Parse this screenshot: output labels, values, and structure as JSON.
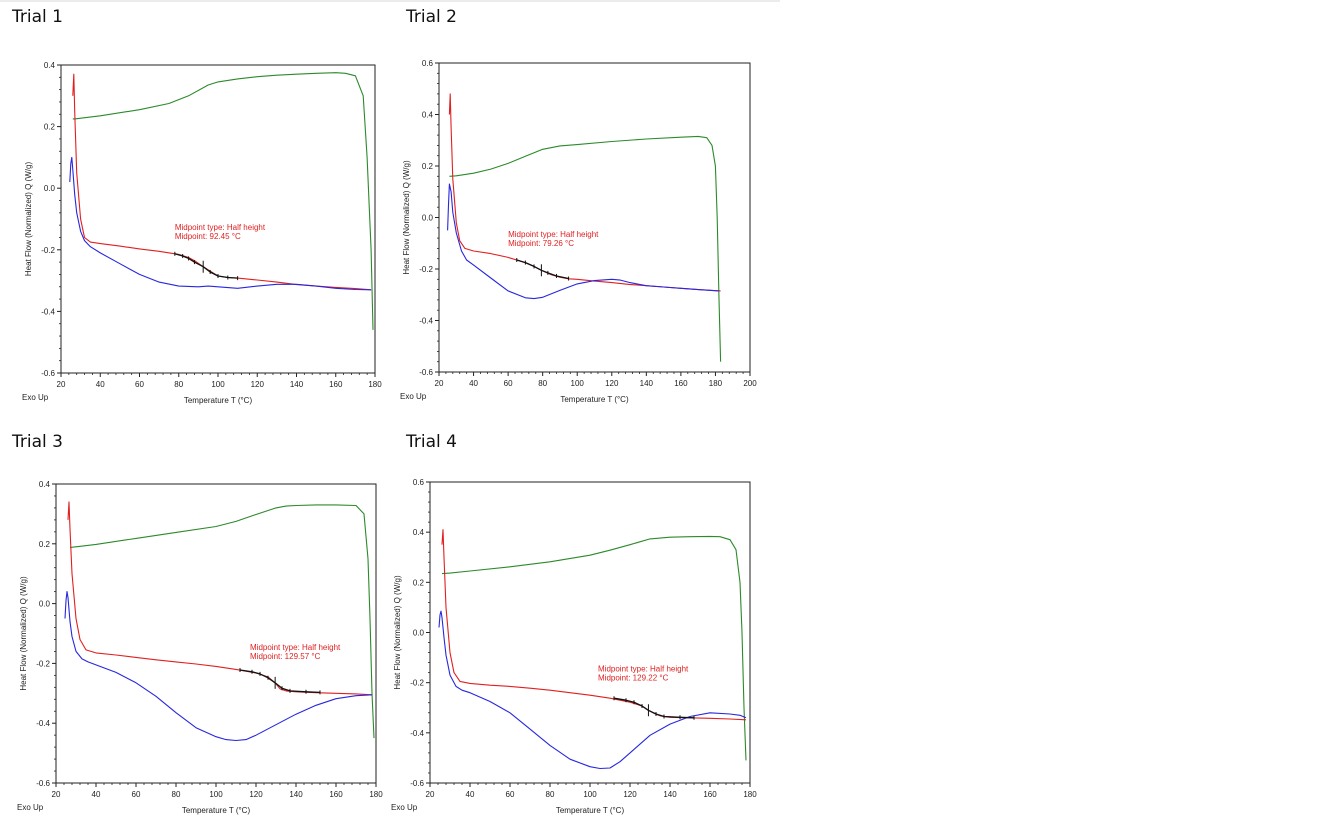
{
  "titles": [
    "Trial 1",
    "Trial 2",
    "Trial 3",
    "Trial 4"
  ],
  "colors": {
    "heat": "#2b8a2b",
    "cool": "#e02020",
    "reheat": "#2727e0",
    "marker": "#111111",
    "annotation": "#e02020"
  },
  "chart_data": [
    {
      "type": "line",
      "title": "Trial 1",
      "xlabel": "Temperature T (°C)",
      "ylabel": "Heat Flow (Normalized) Q (W/g)",
      "corner_label": "Exo Up",
      "xlim": [
        20,
        180
      ],
      "ylim": [
        -0.6,
        0.4
      ],
      "xticks": [
        20,
        40,
        60,
        80,
        100,
        120,
        140,
        160,
        180
      ],
      "yticks": [
        -0.6,
        -0.4,
        -0.2,
        0.0,
        0.2,
        0.4
      ],
      "ytick_labels": [
        "-0.6",
        "-0.4",
        "-0.2",
        "0.0",
        "0.2",
        "0.4"
      ],
      "annotation": [
        "Midpoint type: Half height",
        "Midpoint: 92.45 °C"
      ],
      "annotation_at": [
        78,
        -0.135
      ],
      "series": [
        {
          "role": "heat",
          "x": [
            26,
            27,
            40,
            60,
            75,
            85,
            95,
            100,
            110,
            120,
            130,
            140,
            150,
            160,
            165,
            170,
            174,
            176,
            178,
            179
          ],
          "y": [
            0.225,
            0.225,
            0.235,
            0.255,
            0.275,
            0.3,
            0.335,
            0.345,
            0.355,
            0.362,
            0.367,
            0.37,
            0.373,
            0.375,
            0.373,
            0.365,
            0.3,
            0.1,
            -0.2,
            -0.46
          ]
        },
        {
          "role": "cool",
          "x": [
            178,
            170,
            160,
            150,
            140,
            130,
            120,
            110,
            105,
            100,
            95,
            92.45,
            88,
            85,
            80,
            70,
            60,
            50,
            40,
            35,
            32,
            30,
            28,
            27,
            26.5,
            26
          ],
          "y": [
            -0.33,
            -0.326,
            -0.322,
            -0.318,
            -0.313,
            -0.305,
            -0.298,
            -0.292,
            -0.29,
            -0.285,
            -0.265,
            -0.255,
            -0.235,
            -0.225,
            -0.215,
            -0.205,
            -0.197,
            -0.188,
            -0.18,
            -0.175,
            -0.16,
            -0.1,
            0.05,
            0.25,
            0.37,
            0.3
          ]
        },
        {
          "role": "reheat",
          "x": [
            24.5,
            25,
            25.5,
            26,
            27,
            28,
            30,
            32,
            35,
            40,
            50,
            60,
            70,
            80,
            90,
            95,
            100,
            110,
            120,
            130,
            140,
            150,
            160,
            170,
            178
          ],
          "y": [
            0.02,
            0.08,
            0.1,
            0.06,
            -0.02,
            -0.08,
            -0.14,
            -0.17,
            -0.19,
            -0.21,
            -0.245,
            -0.28,
            -0.305,
            -0.318,
            -0.32,
            -0.318,
            -0.32,
            -0.325,
            -0.318,
            -0.312,
            -0.312,
            -0.318,
            -0.325,
            -0.329,
            -0.33
          ]
        },
        {
          "role": "marker",
          "x": [
            78,
            82,
            85,
            88,
            92.45,
            96,
            100,
            105,
            110
          ],
          "y": [
            -0.213,
            -0.22,
            -0.228,
            -0.24,
            -0.255,
            -0.272,
            -0.285,
            -0.29,
            -0.292
          ]
        }
      ]
    },
    {
      "type": "line",
      "title": "Trial 2",
      "xlabel": "Temperature T (°C)",
      "ylabel": "Heat Flow (Normalized) Q (W/g)",
      "corner_label": "Exo Up",
      "xlim": [
        20,
        200
      ],
      "ylim": [
        -0.6,
        0.6
      ],
      "xticks": [
        20,
        40,
        60,
        80,
        100,
        120,
        140,
        160,
        180,
        200
      ],
      "yticks": [
        -0.6,
        -0.4,
        -0.2,
        0.0,
        0.2,
        0.4,
        0.6
      ],
      "ytick_labels": [
        "-0.6",
        "-0.4",
        "-0.2",
        "0.0",
        "0.2",
        "0.4",
        "0.6"
      ],
      "annotation": [
        "Midpoint type: Half height",
        "Midpoint: 79.26 °C"
      ],
      "annotation_at": [
        60,
        -0.075
      ],
      "series": [
        {
          "role": "heat",
          "x": [
            26,
            30,
            40,
            50,
            60,
            70,
            80,
            90,
            100,
            120,
            140,
            160,
            170,
            175,
            178,
            180,
            181,
            182,
            183
          ],
          "y": [
            0.16,
            0.162,
            0.172,
            0.188,
            0.21,
            0.238,
            0.265,
            0.278,
            0.283,
            0.295,
            0.305,
            0.312,
            0.315,
            0.31,
            0.28,
            0.2,
            0.0,
            -0.3,
            -0.56
          ]
        },
        {
          "role": "cool",
          "x": [
            183,
            170,
            160,
            150,
            140,
            130,
            120,
            110,
            100,
            95,
            90,
            85,
            79.26,
            75,
            70,
            60,
            50,
            40,
            35,
            32,
            30,
            28,
            27,
            26.5,
            26
          ],
          "y": [
            -0.285,
            -0.28,
            -0.275,
            -0.27,
            -0.265,
            -0.26,
            -0.253,
            -0.247,
            -0.24,
            -0.238,
            -0.232,
            -0.222,
            -0.205,
            -0.19,
            -0.175,
            -0.155,
            -0.14,
            -0.13,
            -0.12,
            -0.09,
            -0.02,
            0.15,
            0.35,
            0.48,
            0.4
          ]
        },
        {
          "role": "reheat",
          "x": [
            25,
            25.5,
            26,
            27,
            28,
            30,
            33,
            36,
            40,
            50,
            60,
            70,
            75,
            80,
            90,
            100,
            110,
            120,
            125,
            130,
            140,
            150,
            160,
            170,
            182
          ],
          "y": [
            -0.05,
            0.05,
            0.13,
            0.1,
            0.02,
            -0.06,
            -0.13,
            -0.165,
            -0.185,
            -0.235,
            -0.285,
            -0.312,
            -0.315,
            -0.31,
            -0.283,
            -0.258,
            -0.245,
            -0.24,
            -0.243,
            -0.252,
            -0.265,
            -0.27,
            -0.275,
            -0.28,
            -0.285
          ]
        },
        {
          "role": "marker",
          "x": [
            65,
            70,
            75,
            79.26,
            83,
            88,
            95
          ],
          "y": [
            -0.165,
            -0.175,
            -0.19,
            -0.205,
            -0.215,
            -0.227,
            -0.237
          ]
        }
      ]
    },
    {
      "type": "line",
      "title": "Trial 3",
      "xlabel": "Temperature T (°C)",
      "ylabel": "Heat Flow (Normalized) Q (W/g)",
      "corner_label": "Exo Up",
      "xlim": [
        20,
        180
      ],
      "ylim": [
        -0.6,
        0.4
      ],
      "xticks": [
        20,
        40,
        60,
        80,
        100,
        120,
        140,
        160,
        180
      ],
      "yticks": [
        -0.6,
        -0.4,
        -0.2,
        0.0,
        0.2,
        0.4
      ],
      "ytick_labels": [
        "-0.6",
        "-0.4",
        "-0.2",
        "0.0",
        "0.2",
        "0.4"
      ],
      "annotation": [
        "Midpoint type: Half height",
        "Midpoint: 129.57 °C"
      ],
      "annotation_at": [
        117,
        -0.155
      ],
      "series": [
        {
          "role": "heat",
          "x": [
            27,
            30,
            40,
            60,
            80,
            100,
            110,
            120,
            130,
            135,
            140,
            150,
            160,
            170,
            174,
            176,
            177,
            178,
            179
          ],
          "y": [
            0.188,
            0.19,
            0.198,
            0.218,
            0.238,
            0.258,
            0.275,
            0.298,
            0.32,
            0.326,
            0.328,
            0.33,
            0.33,
            0.328,
            0.3,
            0.15,
            -0.05,
            -0.3,
            -0.45
          ]
        },
        {
          "role": "cool",
          "x": [
            178,
            170,
            160,
            150,
            140,
            135,
            132,
            129.57,
            126,
            120,
            110,
            100,
            90,
            80,
            70,
            60,
            50,
            40,
            35,
            32,
            30,
            28,
            27,
            26.5,
            26
          ],
          "y": [
            -0.305,
            -0.302,
            -0.3,
            -0.298,
            -0.295,
            -0.292,
            -0.285,
            -0.265,
            -0.245,
            -0.232,
            -0.22,
            -0.21,
            -0.202,
            -0.195,
            -0.188,
            -0.18,
            -0.172,
            -0.165,
            -0.155,
            -0.12,
            -0.05,
            0.1,
            0.25,
            0.34,
            0.28
          ]
        },
        {
          "role": "reheat",
          "x": [
            24.5,
            25,
            25.5,
            26,
            27,
            28,
            30,
            33,
            36,
            40,
            50,
            60,
            70,
            80,
            90,
            100,
            105,
            110,
            115,
            120,
            130,
            140,
            150,
            160,
            170,
            178
          ],
          "y": [
            -0.05,
            0.01,
            0.04,
            0.02,
            -0.06,
            -0.11,
            -0.16,
            -0.185,
            -0.195,
            -0.205,
            -0.23,
            -0.265,
            -0.31,
            -0.365,
            -0.415,
            -0.445,
            -0.455,
            -0.458,
            -0.455,
            -0.44,
            -0.405,
            -0.37,
            -0.34,
            -0.318,
            -0.308,
            -0.305
          ]
        },
        {
          "role": "marker",
          "x": [
            112,
            118,
            122,
            126,
            129.57,
            133,
            137,
            145,
            152
          ],
          "y": [
            -0.222,
            -0.228,
            -0.235,
            -0.248,
            -0.265,
            -0.283,
            -0.292,
            -0.295,
            -0.297
          ]
        }
      ]
    },
    {
      "type": "line",
      "title": "Trial 4",
      "xlabel": "Temperature T (°C)",
      "ylabel": "Heat Flow (Normalized) Q (W/g)",
      "corner_label": "Exo Up",
      "xlim": [
        20,
        180
      ],
      "ylim": [
        -0.6,
        0.6
      ],
      "xticks": [
        20,
        40,
        60,
        80,
        100,
        120,
        140,
        160,
        180
      ],
      "yticks": [
        -0.6,
        -0.4,
        -0.2,
        0.0,
        0.2,
        0.4,
        0.6
      ],
      "ytick_labels": [
        "-0.6",
        "-0.4",
        "-0.2",
        "0.0",
        "0.2",
        "0.4",
        "0.6"
      ],
      "annotation": [
        "Midpoint type: Half height",
        "Midpoint: 129.22 °C"
      ],
      "annotation_at": [
        104,
        -0.155
      ],
      "series": [
        {
          "role": "heat",
          "x": [
            26,
            30,
            40,
            60,
            80,
            100,
            110,
            120,
            130,
            140,
            150,
            160,
            165,
            170,
            173,
            175,
            176,
            177,
            178
          ],
          "y": [
            0.235,
            0.237,
            0.245,
            0.262,
            0.282,
            0.308,
            0.328,
            0.35,
            0.373,
            0.38,
            0.382,
            0.383,
            0.382,
            0.37,
            0.33,
            0.2,
            0.0,
            -0.3,
            -0.51
          ]
        },
        {
          "role": "cool",
          "x": [
            178,
            170,
            160,
            150,
            140,
            135,
            132,
            129.22,
            126,
            120,
            110,
            100,
            90,
            80,
            70,
            60,
            50,
            40,
            35,
            32,
            30,
            28,
            27,
            26.5,
            26
          ],
          "y": [
            -0.348,
            -0.345,
            -0.342,
            -0.34,
            -0.338,
            -0.332,
            -0.322,
            -0.31,
            -0.293,
            -0.278,
            -0.262,
            -0.25,
            -0.24,
            -0.23,
            -0.222,
            -0.215,
            -0.21,
            -0.203,
            -0.195,
            -0.16,
            -0.08,
            0.1,
            0.3,
            0.41,
            0.35
          ]
        },
        {
          "role": "reheat",
          "x": [
            24.5,
            25,
            25.5,
            26,
            27,
            28,
            30,
            33,
            36,
            40,
            50,
            60,
            70,
            80,
            90,
            100,
            105,
            110,
            115,
            120,
            130,
            140,
            150,
            160,
            170,
            175,
            178
          ],
          "y": [
            0.02,
            0.07,
            0.085,
            0.06,
            -0.02,
            -0.09,
            -0.17,
            -0.215,
            -0.23,
            -0.24,
            -0.275,
            -0.32,
            -0.385,
            -0.45,
            -0.505,
            -0.535,
            -0.542,
            -0.54,
            -0.515,
            -0.48,
            -0.41,
            -0.365,
            -0.335,
            -0.32,
            -0.325,
            -0.33,
            -0.34
          ]
        },
        {
          "role": "marker",
          "x": [
            112,
            118,
            122,
            126,
            129.22,
            133,
            137,
            145,
            152
          ],
          "y": [
            -0.262,
            -0.27,
            -0.278,
            -0.293,
            -0.31,
            -0.325,
            -0.335,
            -0.338,
            -0.34
          ]
        }
      ]
    }
  ]
}
